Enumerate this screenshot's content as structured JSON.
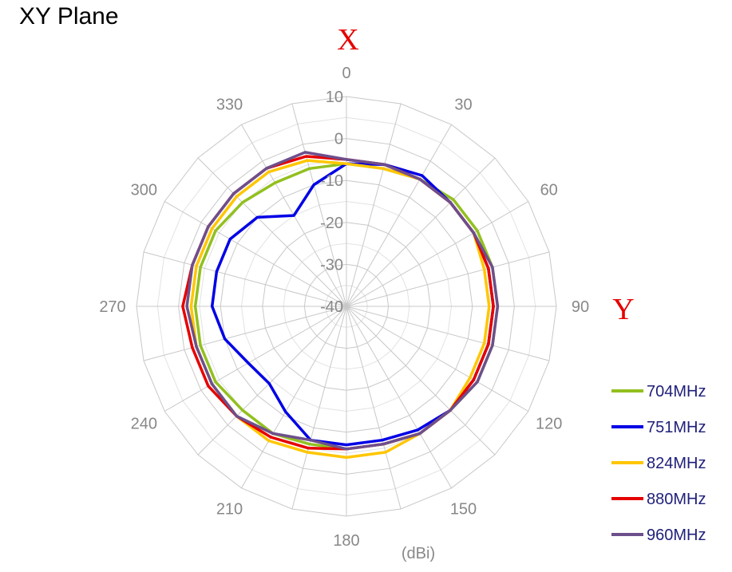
{
  "title": "XY Plane",
  "axis_markers": {
    "x_label": "X",
    "y_label": "Y",
    "color": "#e60000"
  },
  "unit_label": "(dBi)",
  "chart_data": {
    "type": "radar",
    "angle_labels": [
      "0",
      "30",
      "60",
      "90",
      "120",
      "150",
      "180",
      "210",
      "240",
      "270",
      "300",
      "330"
    ],
    "angles_deg": [
      0,
      15,
      30,
      45,
      60,
      75,
      90,
      105,
      120,
      135,
      150,
      165,
      180,
      195,
      210,
      225,
      240,
      255,
      270,
      285,
      300,
      315,
      330,
      345
    ],
    "radial_ticks": [
      10,
      0,
      -10,
      -20,
      -30,
      -40
    ],
    "r_range": [
      -40,
      10
    ],
    "grid": true,
    "legend_position": "right",
    "series": [
      {
        "name": "704MHz",
        "color": "#92c01f",
        "values": [
          -6,
          -6,
          -5,
          -4,
          -4,
          -4,
          -4,
          -4,
          -4,
          -5,
          -5,
          -6,
          -6,
          -6,
          -5,
          -5,
          -4,
          -4,
          -4,
          -4,
          -4,
          -5,
          -6,
          -6
        ]
      },
      {
        "name": "751MHz",
        "color": "#0000e6",
        "values": [
          -6,
          -5,
          -4,
          -5,
          -5,
          -5,
          -5,
          -5,
          -5,
          -5,
          -6,
          -7,
          -7,
          -7,
          -11,
          -14,
          -13,
          -10,
          -8,
          -8,
          -8,
          -10,
          -15,
          -10
        ]
      },
      {
        "name": "824MHz",
        "color": "#ffc600",
        "values": [
          -6,
          -6,
          -5,
          -5,
          -5,
          -6,
          -6,
          -6,
          -6,
          -5,
          -5,
          -4,
          -4,
          -4,
          -3,
          -3,
          -3,
          -3,
          -3,
          -3,
          -3,
          -3,
          -3,
          -4
        ]
      },
      {
        "name": "880MHz",
        "color": "#e60000",
        "values": [
          -5,
          -5,
          -5,
          -5,
          -5,
          -5,
          -5,
          -5,
          -5,
          -5,
          -5,
          -6,
          -6,
          -5,
          -4,
          -3,
          -2,
          -2,
          -1,
          -2,
          -2,
          -2,
          -2,
          -3
        ]
      },
      {
        "name": "960MHz",
        "color": "#6d4f8c",
        "values": [
          -5,
          -5,
          -5,
          -5,
          -5,
          -4,
          -4,
          -4,
          -4,
          -5,
          -5,
          -6,
          -6,
          -7,
          -5,
          -3,
          -3,
          -3,
          -2,
          -2,
          -2,
          -2,
          -2,
          -2
        ]
      }
    ]
  }
}
